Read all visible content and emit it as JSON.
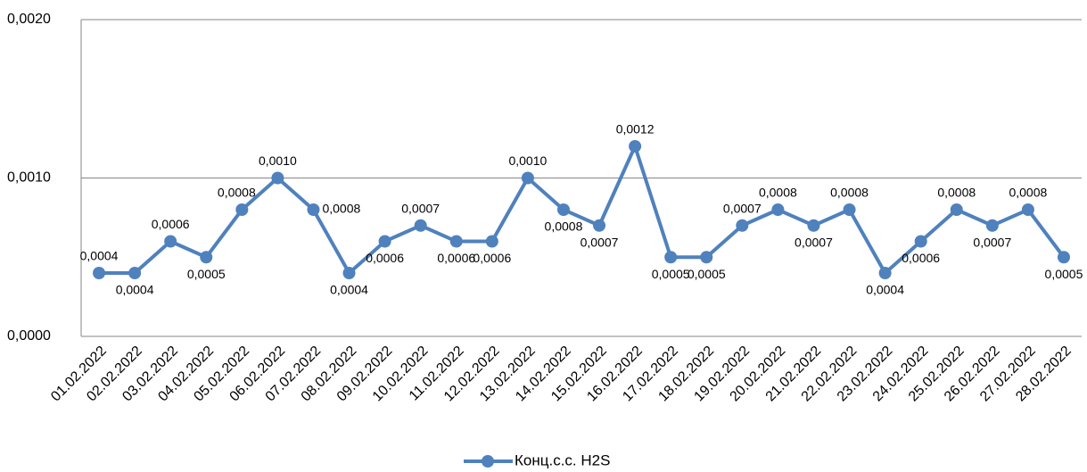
{
  "chart_data": {
    "type": "line",
    "categories": [
      "01.02.2022",
      "02.02.2022",
      "03.02.2022",
      "04.02.2022",
      "05.02.2022",
      "06.02.2022",
      "07.02.2022",
      "08.02.2022",
      "09.02.2022",
      "10.02.2022",
      "11.02.2022",
      "12.02.2022",
      "13.02.2022",
      "14.02.2022",
      "15.02.2022",
      "16.02.2022",
      "17.02.2022",
      "18.02.2022",
      "19.02.2022",
      "20.02.2022",
      "21.02.2022",
      "22.02.2022",
      "23.02.2022",
      "24.02.2022",
      "25.02.2022",
      "26.02.2022",
      "27.02.2022",
      "28.02.2022"
    ],
    "series": [
      {
        "name": "Конц.с.с. H2S",
        "color": "#4f81bd",
        "values": [
          0.0004,
          0.0004,
          0.0006,
          0.0005,
          0.0008,
          0.001,
          0.0008,
          0.0004,
          0.0006,
          0.0007,
          0.0006,
          0.0006,
          0.001,
          0.0008,
          0.0007,
          0.0012,
          0.0005,
          0.0005,
          0.0007,
          0.0008,
          0.0007,
          0.0008,
          0.0004,
          0.0006,
          0.0008,
          0.0007,
          0.0008,
          0.0005
        ],
        "value_labels": [
          "0,0004",
          "0,0004",
          "0,0006",
          "0,0005",
          "0,0008",
          "0,0010",
          "0,0008",
          "0,0004",
          "0,0006",
          "0,0007",
          "0,0006",
          "0,0006",
          "0,0010",
          "0,0008",
          "0,0007",
          "0,0012",
          "0,0005",
          "0,0005",
          "0,0007",
          "0,0008",
          "0,0007",
          "0,0008",
          "0,0004",
          "0,0006",
          "0,0008",
          "0,0007",
          "0,0008",
          "0,0005"
        ]
      }
    ],
    "ylim": [
      0,
      0.002
    ],
    "yticks": [
      {
        "value": 0,
        "label": "0,0000"
      },
      {
        "value": 0.001,
        "label": "0,0010"
      },
      {
        "value": 0.002,
        "label": "0,0020"
      }
    ],
    "grid": true,
    "legend": "bottom"
  }
}
